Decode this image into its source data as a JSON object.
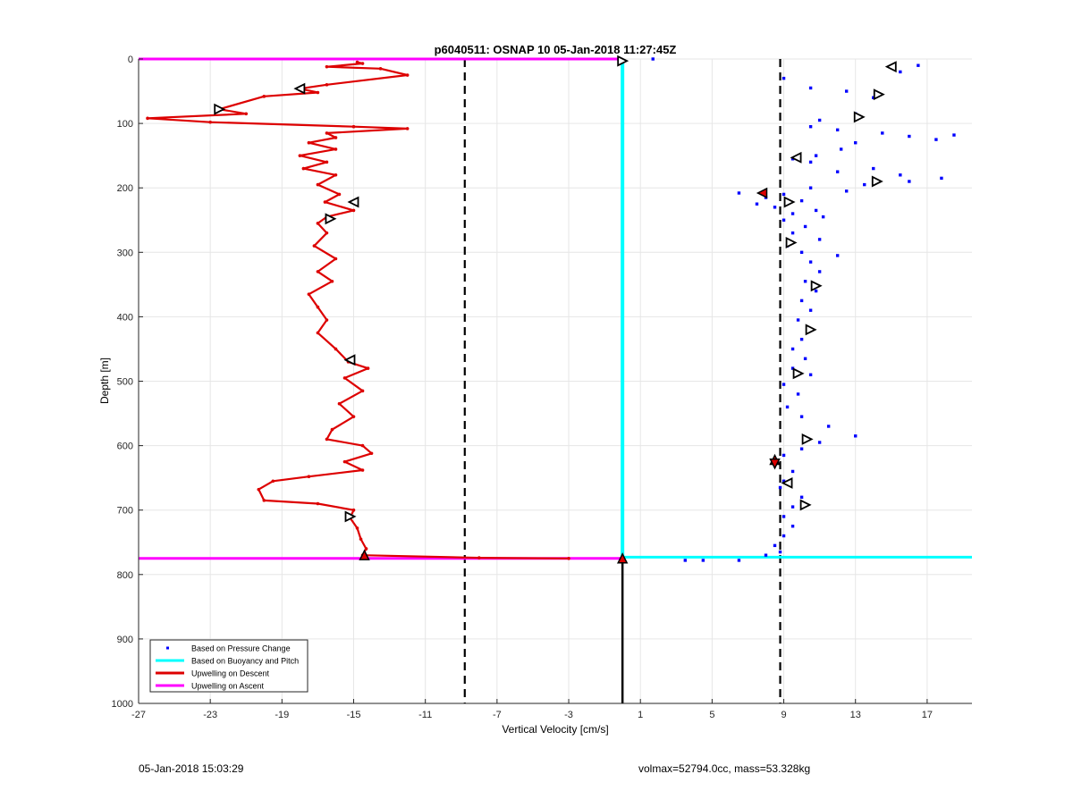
{
  "chart_data": {
    "type": "scatter",
    "title": "p6040511: OSNAP 10 05-Jan-2018 11:27:45Z",
    "xlabel": "Vertical Velocity [cm/s]",
    "ylabel": "Depth [m]",
    "xlim": [
      -27,
      19.5
    ],
    "ylim": [
      0,
      1000
    ],
    "y_reversed": true,
    "grid": true,
    "xticks": [
      "-27",
      "-23",
      "-19",
      "-15",
      "-11",
      "-7",
      "-3",
      "1",
      "5",
      "9",
      "13",
      "17"
    ],
    "yticks": [
      "0",
      "100",
      "200",
      "300",
      "400",
      "500",
      "600",
      "700",
      "800",
      "900",
      "1000"
    ],
    "legend_position": "bottom-left",
    "legend": [
      {
        "label": "Based on Pressure Change",
        "style": "dot",
        "color": "#0000ff"
      },
      {
        "label": "Based on Buoyancy and Pitch",
        "style": "line",
        "color": "#00ffff"
      },
      {
        "label": "Upwelling on Descent",
        "style": "line",
        "color": "#dd0000"
      },
      {
        "label": "Upwelling on Ascent",
        "style": "line",
        "color": "#ff00ff"
      }
    ],
    "reference_lines": {
      "dashed_x": [
        -8.8,
        8.8
      ],
      "solid_x": 0.0,
      "solid_x_depth_range": [
        775,
        1000
      ],
      "horizontal": [
        {
          "name": "surface",
          "depth": 0,
          "x_range": [
            -27,
            0
          ],
          "color": "#ff00ff"
        },
        {
          "name": "bottom_ascent",
          "depth": 775,
          "x_range": [
            -27,
            0
          ],
          "color": "#ff00ff"
        },
        {
          "name": "bottom_buoyancy",
          "depth": 773,
          "x_range": [
            0,
            19.5
          ],
          "color": "#00ffff"
        }
      ]
    },
    "buoyancy_series": {
      "x": 0.0,
      "depth_range": [
        0,
        775
      ]
    },
    "series": [
      {
        "name": "Upwelling on Descent",
        "color": "#dd0000",
        "points": [
          [
            -14.8,
            5
          ],
          [
            -14.5,
            7
          ],
          [
            -16.5,
            12
          ],
          [
            -13.5,
            15
          ],
          [
            -12.0,
            25
          ],
          [
            -16.5,
            40
          ],
          [
            -18.0,
            46
          ],
          [
            -17.0,
            52
          ],
          [
            -20.0,
            58
          ],
          [
            -22.5,
            78
          ],
          [
            -21.0,
            85
          ],
          [
            -26.5,
            92
          ],
          [
            -23.0,
            98
          ],
          [
            -15.0,
            105
          ],
          [
            -12.0,
            108
          ],
          [
            -16.5,
            115
          ],
          [
            -16.0,
            122
          ],
          [
            -17.5,
            130
          ],
          [
            -16.0,
            140
          ],
          [
            -18.0,
            150
          ],
          [
            -16.5,
            160
          ],
          [
            -17.8,
            170
          ],
          [
            -16.0,
            180
          ],
          [
            -17.0,
            195
          ],
          [
            -15.8,
            210
          ],
          [
            -16.6,
            222
          ],
          [
            -15.0,
            235
          ],
          [
            -16.5,
            245
          ],
          [
            -17.0,
            255
          ],
          [
            -16.5,
            270
          ],
          [
            -17.2,
            290
          ],
          [
            -16.0,
            310
          ],
          [
            -17.0,
            330
          ],
          [
            -16.2,
            345
          ],
          [
            -17.5,
            365
          ],
          [
            -17.0,
            385
          ],
          [
            -16.5,
            405
          ],
          [
            -17.0,
            425
          ],
          [
            -16.0,
            450
          ],
          [
            -15.3,
            470
          ],
          [
            -14.2,
            480
          ],
          [
            -15.5,
            495
          ],
          [
            -14.5,
            515
          ],
          [
            -15.8,
            535
          ],
          [
            -15.0,
            555
          ],
          [
            -16.2,
            575
          ],
          [
            -16.5,
            590
          ],
          [
            -14.5,
            600
          ],
          [
            -14.0,
            612
          ],
          [
            -15.5,
            625
          ],
          [
            -14.5,
            638
          ],
          [
            -17.5,
            648
          ],
          [
            -19.5,
            655
          ],
          [
            -20.3,
            668
          ],
          [
            -20.0,
            685
          ],
          [
            -17.0,
            690
          ],
          [
            -15.0,
            700
          ],
          [
            -15.2,
            712
          ],
          [
            -14.8,
            728
          ],
          [
            -14.6,
            745
          ],
          [
            -14.3,
            760
          ],
          [
            -14.5,
            770
          ],
          [
            -8.0,
            774
          ],
          [
            -3.0,
            775
          ]
        ]
      },
      {
        "name": "Based on Pressure Change",
        "color": "#0000ff",
        "points": [
          [
            1.7,
            0
          ],
          [
            9.0,
            30
          ],
          [
            10.5,
            45
          ],
          [
            12.5,
            50
          ],
          [
            14.0,
            60
          ],
          [
            15.5,
            20
          ],
          [
            16.5,
            10
          ],
          [
            13.0,
            85
          ],
          [
            11.0,
            95
          ],
          [
            10.5,
            105
          ],
          [
            12.0,
            110
          ],
          [
            14.5,
            115
          ],
          [
            16.0,
            120
          ],
          [
            18.5,
            118
          ],
          [
            17.5,
            125
          ],
          [
            13.0,
            130
          ],
          [
            12.2,
            140
          ],
          [
            10.8,
            150
          ],
          [
            9.5,
            155
          ],
          [
            10.5,
            160
          ],
          [
            14.0,
            170
          ],
          [
            12.0,
            175
          ],
          [
            15.5,
            180
          ],
          [
            17.8,
            185
          ],
          [
            16.0,
            190
          ],
          [
            13.5,
            195
          ],
          [
            10.5,
            200
          ],
          [
            12.5,
            205
          ],
          [
            6.5,
            208
          ],
          [
            9.0,
            210
          ],
          [
            8.0,
            215
          ],
          [
            10.0,
            220
          ],
          [
            7.5,
            225
          ],
          [
            8.5,
            230
          ],
          [
            10.8,
            235
          ],
          [
            9.5,
            240
          ],
          [
            11.2,
            245
          ],
          [
            9.0,
            250
          ],
          [
            10.2,
            260
          ],
          [
            9.5,
            270
          ],
          [
            11.0,
            280
          ],
          [
            9.2,
            290
          ],
          [
            10.0,
            300
          ],
          [
            12.0,
            305
          ],
          [
            10.5,
            315
          ],
          [
            11.0,
            330
          ],
          [
            10.2,
            345
          ],
          [
            10.8,
            360
          ],
          [
            10.0,
            375
          ],
          [
            10.5,
            390
          ],
          [
            9.8,
            405
          ],
          [
            10.5,
            420
          ],
          [
            10.0,
            435
          ],
          [
            9.5,
            450
          ],
          [
            10.2,
            465
          ],
          [
            9.5,
            480
          ],
          [
            10.5,
            490
          ],
          [
            9.0,
            505
          ],
          [
            9.8,
            520
          ],
          [
            9.2,
            540
          ],
          [
            10.0,
            555
          ],
          [
            11.5,
            570
          ],
          [
            13.0,
            585
          ],
          [
            11.0,
            595
          ],
          [
            10.0,
            605
          ],
          [
            9.0,
            615
          ],
          [
            8.5,
            625
          ],
          [
            9.5,
            640
          ],
          [
            9.0,
            655
          ],
          [
            8.8,
            665
          ],
          [
            10.0,
            680
          ],
          [
            9.5,
            695
          ],
          [
            9.0,
            710
          ],
          [
            9.5,
            725
          ],
          [
            9.0,
            740
          ],
          [
            8.5,
            755
          ],
          [
            8.8,
            765
          ],
          [
            8.0,
            770
          ],
          [
            3.5,
            778
          ],
          [
            4.5,
            778
          ],
          [
            6.5,
            778
          ]
        ]
      }
    ],
    "markers": [
      {
        "x": 0.0,
        "depth": 3,
        "dir": "right"
      },
      {
        "x": -18.0,
        "depth": 46,
        "dir": "left"
      },
      {
        "x": -22.5,
        "depth": 78,
        "dir": "right"
      },
      {
        "x": -15.0,
        "depth": 222,
        "dir": "left"
      },
      {
        "x": -16.3,
        "depth": 248,
        "dir": "right"
      },
      {
        "x": -15.2,
        "depth": 467,
        "dir": "left"
      },
      {
        "x": -15.2,
        "depth": 710,
        "dir": "right"
      },
      {
        "x": 15.0,
        "depth": 12,
        "dir": "left"
      },
      {
        "x": 14.3,
        "depth": 55,
        "dir": "right"
      },
      {
        "x": 13.2,
        "depth": 90,
        "dir": "right"
      },
      {
        "x": 9.7,
        "depth": 153,
        "dir": "left"
      },
      {
        "x": 14.2,
        "depth": 190,
        "dir": "right"
      },
      {
        "x": 9.3,
        "depth": 222,
        "dir": "right"
      },
      {
        "x": 9.4,
        "depth": 285,
        "dir": "right"
      },
      {
        "x": 10.8,
        "depth": 352,
        "dir": "right"
      },
      {
        "x": 10.5,
        "depth": 420,
        "dir": "right"
      },
      {
        "x": 9.8,
        "depth": 488,
        "dir": "right"
      },
      {
        "x": 10.3,
        "depth": 590,
        "dir": "right"
      },
      {
        "x": 9.2,
        "depth": 658,
        "dir": "left"
      },
      {
        "x": 10.2,
        "depth": 692,
        "dir": "right"
      }
    ],
    "special_markers": [
      {
        "x": 7.8,
        "depth": 208,
        "shape": "left",
        "fill": "#dd0000"
      },
      {
        "x": 8.5,
        "depth": 622,
        "shape": "up",
        "fill": "#dd0000"
      },
      {
        "x": 8.5,
        "depth": 628,
        "shape": "down",
        "fill": "#dd0000"
      },
      {
        "x": -14.4,
        "depth": 770,
        "shape": "up",
        "fill": "#dd0000"
      },
      {
        "x": 0.0,
        "depth": 775,
        "shape": "up",
        "fill": "#dd0000"
      }
    ]
  },
  "footer": {
    "timestamp": "05-Jan-2018 15:03:29",
    "info": "volmax=52794.0cc, mass=53.328kg"
  }
}
